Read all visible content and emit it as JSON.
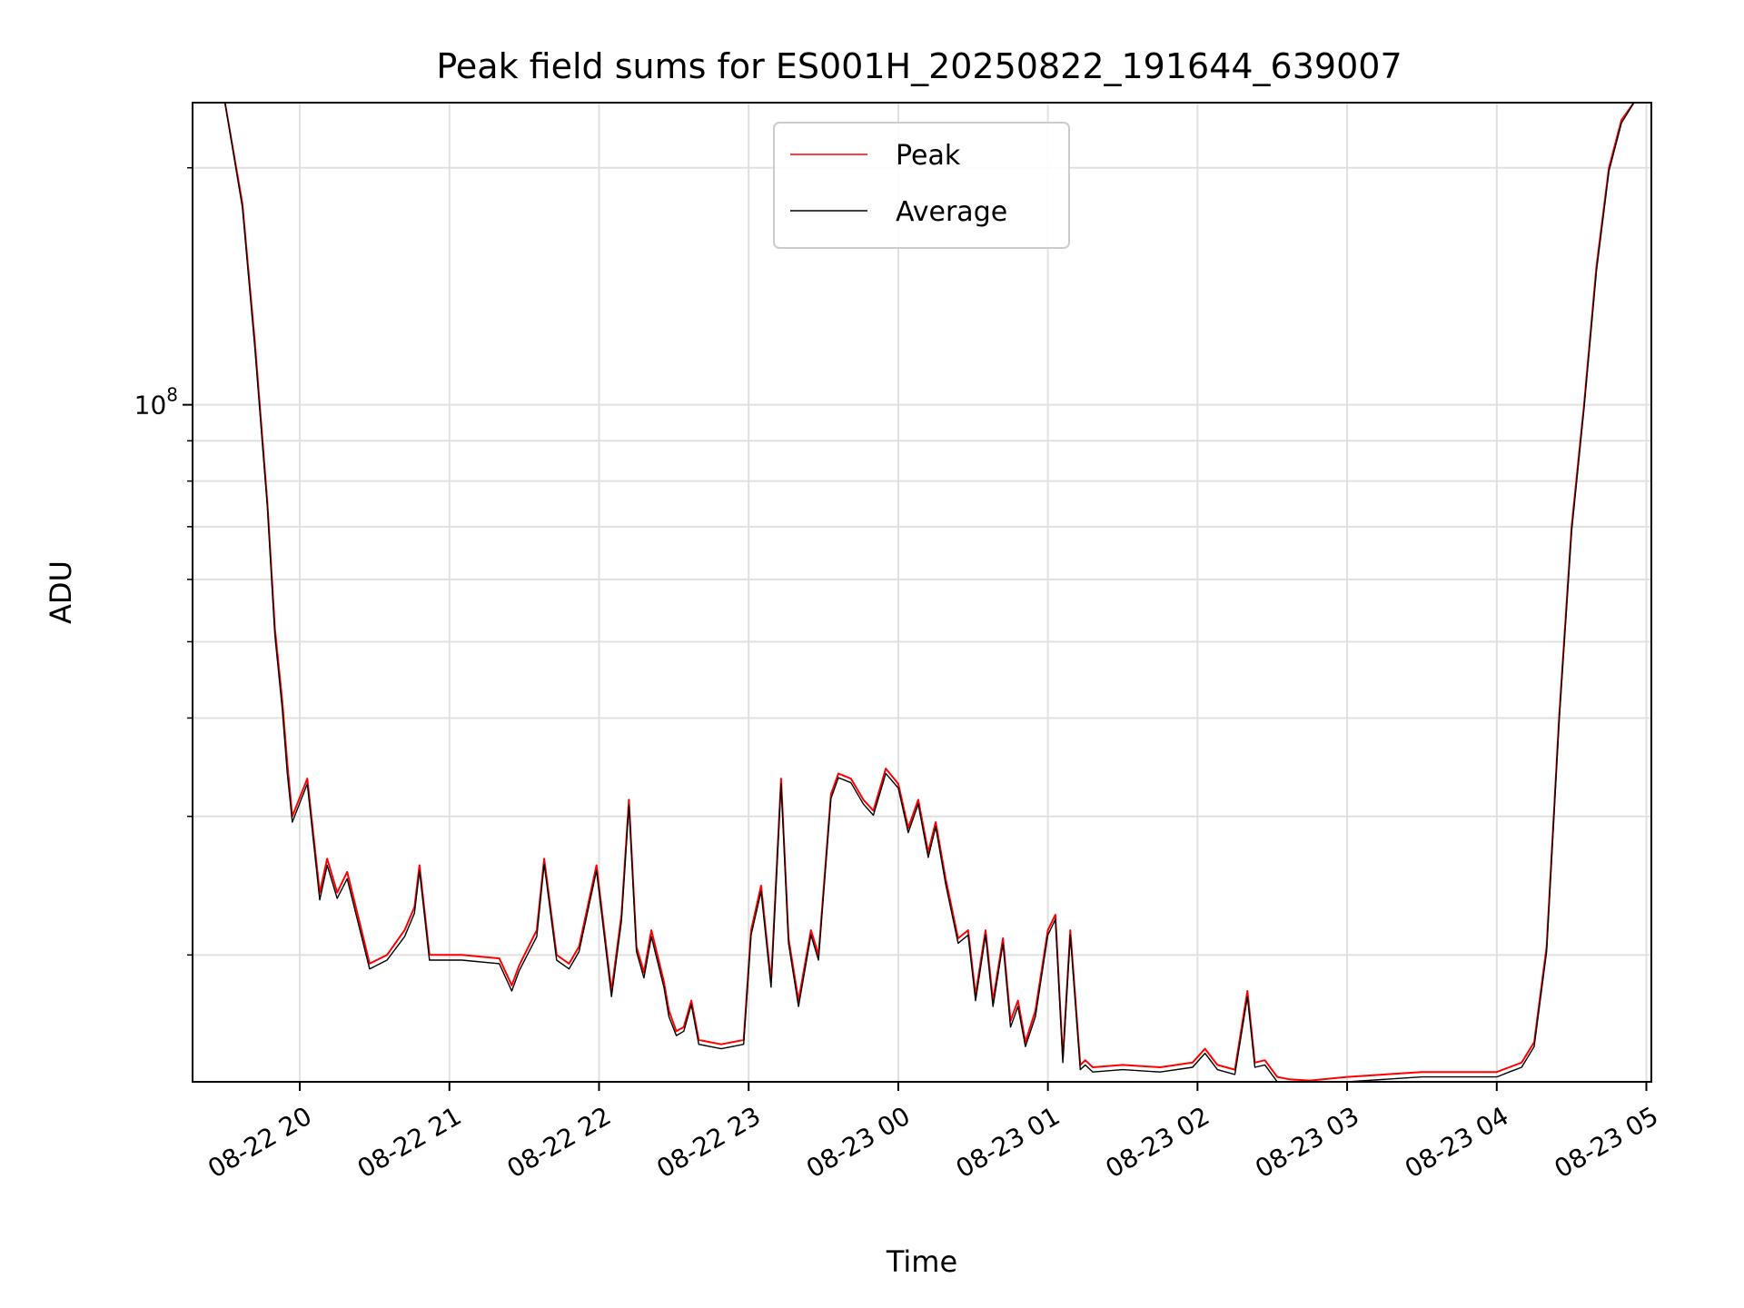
{
  "chart_data": {
    "type": "line",
    "title": "Peak field sums for ES001H_20250822_191644_639007",
    "xlabel": "Time",
    "ylabel": "ADU",
    "x_scale": "time",
    "y_scale": "log",
    "xlim": [
      "2025-08-22T19:17",
      "2025-08-23T05:02"
    ],
    "ylim": [
      13800000,
      242000000
    ],
    "x_ticks": [
      {
        "label": "08-22 20",
        "value": "2025-08-22T20:00"
      },
      {
        "label": "08-22 21",
        "value": "2025-08-22T21:00"
      },
      {
        "label": "08-22 22",
        "value": "2025-08-22T22:00"
      },
      {
        "label": "08-22 23",
        "value": "2025-08-22T23:00"
      },
      {
        "label": "08-23 00",
        "value": "2025-08-23T00:00"
      },
      {
        "label": "08-23 01",
        "value": "2025-08-23T01:00"
      },
      {
        "label": "08-23 02",
        "value": "2025-08-23T02:00"
      },
      {
        "label": "08-23 03",
        "value": "2025-08-23T03:00"
      },
      {
        "label": "08-23 04",
        "value": "2025-08-23T04:00"
      },
      {
        "label": "08-23 05",
        "value": "2025-08-23T05:00"
      }
    ],
    "y_major_ticks": [
      {
        "label_base": "10",
        "label_exp": "8",
        "value": 100000000
      }
    ],
    "y_minor_ticks": [
      20000000,
      30000000,
      40000000,
      50000000,
      60000000,
      70000000,
      80000000,
      90000000,
      200000000
    ],
    "grid": true,
    "legend": {
      "position": "top-center"
    },
    "series": [
      {
        "name": "Peak",
        "color": "#ff0000",
        "x": [
          "2025-08-22T19:17",
          "2025-08-22T19:30",
          "2025-08-22T19:37",
          "2025-08-22T19:42",
          "2025-08-22T19:47",
          "2025-08-22T19:50",
          "2025-08-22T19:53",
          "2025-08-22T19:55",
          "2025-08-22T19:57",
          "2025-08-22T20:03",
          "2025-08-22T20:08",
          "2025-08-22T20:11",
          "2025-08-22T20:15",
          "2025-08-22T20:19",
          "2025-08-22T20:24",
          "2025-08-22T20:28",
          "2025-08-22T20:35",
          "2025-08-22T20:42",
          "2025-08-22T20:46",
          "2025-08-22T20:48",
          "2025-08-22T20:52",
          "2025-08-22T21:05",
          "2025-08-22T21:20",
          "2025-08-22T21:25",
          "2025-08-22T21:28",
          "2025-08-22T21:35",
          "2025-08-22T21:38",
          "2025-08-22T21:43",
          "2025-08-22T21:48",
          "2025-08-22T21:52",
          "2025-08-22T21:59",
          "2025-08-22T22:05",
          "2025-08-22T22:09",
          "2025-08-22T22:12",
          "2025-08-22T22:15",
          "2025-08-22T22:18",
          "2025-08-22T22:21",
          "2025-08-22T22:26",
          "2025-08-22T22:28",
          "2025-08-22T22:31",
          "2025-08-22T22:34",
          "2025-08-22T22:37",
          "2025-08-22T22:40",
          "2025-08-22T22:49",
          "2025-08-22T22:58",
          "2025-08-22T23:01",
          "2025-08-22T23:05",
          "2025-08-22T23:09",
          "2025-08-22T23:13",
          "2025-08-22T23:16",
          "2025-08-22T23:20",
          "2025-08-22T23:25",
          "2025-08-22T23:28",
          "2025-08-22T23:33",
          "2025-08-22T23:36",
          "2025-08-22T23:41",
          "2025-08-22T23:46",
          "2025-08-22T23:50",
          "2025-08-22T23:55",
          "2025-08-23T00:00",
          "2025-08-23T00:04",
          "2025-08-23T00:08",
          "2025-08-23T00:12",
          "2025-08-23T00:15",
          "2025-08-23T00:19",
          "2025-08-23T00:24",
          "2025-08-23T00:28",
          "2025-08-23T00:31",
          "2025-08-23T00:35",
          "2025-08-23T00:38",
          "2025-08-23T00:42",
          "2025-08-23T00:45",
          "2025-08-23T00:48",
          "2025-08-23T00:51",
          "2025-08-23T00:55",
          "2025-08-23T01:00",
          "2025-08-23T01:03",
          "2025-08-23T01:06",
          "2025-08-23T01:09",
          "2025-08-23T01:13",
          "2025-08-23T01:15",
          "2025-08-23T01:18",
          "2025-08-23T01:30",
          "2025-08-23T01:45",
          "2025-08-23T01:58",
          "2025-08-23T02:03",
          "2025-08-23T02:08",
          "2025-08-23T02:15",
          "2025-08-23T02:20",
          "2025-08-23T02:23",
          "2025-08-23T02:27",
          "2025-08-23T02:32",
          "2025-08-23T02:37",
          "2025-08-23T02:45",
          "2025-08-23T03:00",
          "2025-08-23T03:30",
          "2025-08-23T04:00",
          "2025-08-23T04:05",
          "2025-08-23T04:10",
          "2025-08-23T04:15",
          "2025-08-23T04:20",
          "2025-08-23T04:25",
          "2025-08-23T04:30",
          "2025-08-23T04:35",
          "2025-08-23T04:40",
          "2025-08-23T04:45",
          "2025-08-23T04:50",
          "2025-08-23T04:55",
          "2025-08-23T04:58"
        ],
        "y": [
          242000000,
          242000000,
          180000000,
          120000000,
          75000000,
          52000000,
          42000000,
          35000000,
          30000000,
          33500000,
          24000000,
          26500000,
          24000000,
          25500000,
          22000000,
          19500000,
          20000000,
          21500000,
          23000000,
          26000000,
          20000000,
          20000000,
          19800000,
          18300000,
          19400000,
          21500000,
          26500000,
          20000000,
          19500000,
          20500000,
          26000000,
          18000000,
          22500000,
          31500000,
          20500000,
          19000000,
          21500000,
          18500000,
          17000000,
          16000000,
          16200000,
          17500000,
          15600000,
          15400000,
          15600000,
          21500000,
          24500000,
          18500000,
          33500000,
          21000000,
          17500000,
          21500000,
          20000000,
          32000000,
          34000000,
          33500000,
          31500000,
          30500000,
          34500000,
          33000000,
          29000000,
          31500000,
          27000000,
          29500000,
          25000000,
          21000000,
          21500000,
          17800000,
          21500000,
          17500000,
          21000000,
          16500000,
          17500000,
          15500000,
          17000000,
          21500000,
          22500000,
          14800000,
          21500000,
          14500000,
          14700000,
          14400000,
          14500000,
          14400000,
          14600000,
          15200000,
          14500000,
          14300000,
          18000000,
          14600000,
          14700000,
          14000000,
          13900000,
          13850000,
          14000000,
          14200000,
          14200000,
          14400000,
          14600000,
          15500000,
          20500000,
          40000000,
          70000000,
          100000000,
          150000000,
          200000000,
          230000000,
          242000000,
          242000000
        ]
      },
      {
        "name": "Average",
        "color": "#000000",
        "x": [
          "2025-08-22T19:17",
          "2025-08-22T19:30",
          "2025-08-22T19:37",
          "2025-08-22T19:42",
          "2025-08-22T19:47",
          "2025-08-22T19:50",
          "2025-08-22T19:53",
          "2025-08-22T19:55",
          "2025-08-22T19:57",
          "2025-08-22T20:03",
          "2025-08-22T20:08",
          "2025-08-22T20:11",
          "2025-08-22T20:15",
          "2025-08-22T20:19",
          "2025-08-22T20:24",
          "2025-08-22T20:28",
          "2025-08-22T20:35",
          "2025-08-22T20:42",
          "2025-08-22T20:46",
          "2025-08-22T20:48",
          "2025-08-22T20:52",
          "2025-08-22T21:05",
          "2025-08-22T21:20",
          "2025-08-22T21:25",
          "2025-08-22T21:28",
          "2025-08-22T21:35",
          "2025-08-22T21:38",
          "2025-08-22T21:43",
          "2025-08-22T21:48",
          "2025-08-22T21:52",
          "2025-08-22T21:59",
          "2025-08-22T22:05",
          "2025-08-22T22:09",
          "2025-08-22T22:12",
          "2025-08-22T22:15",
          "2025-08-22T22:18",
          "2025-08-22T22:21",
          "2025-08-22T22:26",
          "2025-08-22T22:28",
          "2025-08-22T22:31",
          "2025-08-22T22:34",
          "2025-08-22T22:37",
          "2025-08-22T22:40",
          "2025-08-22T22:49",
          "2025-08-22T22:58",
          "2025-08-22T23:01",
          "2025-08-22T23:05",
          "2025-08-22T23:09",
          "2025-08-22T23:13",
          "2025-08-22T23:16",
          "2025-08-22T23:20",
          "2025-08-22T23:25",
          "2025-08-22T23:28",
          "2025-08-22T23:33",
          "2025-08-22T23:36",
          "2025-08-22T23:41",
          "2025-08-22T23:46",
          "2025-08-22T23:50",
          "2025-08-22T23:55",
          "2025-08-23T00:00",
          "2025-08-23T00:04",
          "2025-08-23T00:08",
          "2025-08-23T00:12",
          "2025-08-23T00:15",
          "2025-08-23T00:19",
          "2025-08-23T00:24",
          "2025-08-23T00:28",
          "2025-08-23T00:31",
          "2025-08-23T00:35",
          "2025-08-23T00:38",
          "2025-08-23T00:42",
          "2025-08-23T00:45",
          "2025-08-23T00:48",
          "2025-08-23T00:51",
          "2025-08-23T00:55",
          "2025-08-23T01:00",
          "2025-08-23T01:03",
          "2025-08-23T01:06",
          "2025-08-23T01:09",
          "2025-08-23T01:13",
          "2025-08-23T01:15",
          "2025-08-23T01:18",
          "2025-08-23T01:30",
          "2025-08-23T01:45",
          "2025-08-23T01:58",
          "2025-08-23T02:03",
          "2025-08-23T02:08",
          "2025-08-23T02:15",
          "2025-08-23T02:20",
          "2025-08-23T02:23",
          "2025-08-23T02:27",
          "2025-08-23T02:32",
          "2025-08-23T02:37",
          "2025-08-23T02:45",
          "2025-08-23T03:00",
          "2025-08-23T03:30",
          "2025-08-23T04:00",
          "2025-08-23T04:05",
          "2025-08-23T04:10",
          "2025-08-23T04:15",
          "2025-08-23T04:20",
          "2025-08-23T04:25",
          "2025-08-23T04:30",
          "2025-08-23T04:35",
          "2025-08-23T04:40",
          "2025-08-23T04:45",
          "2025-08-23T04:50",
          "2025-08-23T04:55",
          "2025-08-23T04:58"
        ],
        "y": [
          242000000,
          242000000,
          178000000,
          118000000,
          74000000,
          51000000,
          41000000,
          34000000,
          29500000,
          33000000,
          23500000,
          26000000,
          23600000,
          25000000,
          21600000,
          19200000,
          19700000,
          21100000,
          22600000,
          25600000,
          19700000,
          19700000,
          19500000,
          18000000,
          19100000,
          21100000,
          26100000,
          19700000,
          19200000,
          20200000,
          25600000,
          17700000,
          22100000,
          31000000,
          20200000,
          18700000,
          21100000,
          18200000,
          16700000,
          15800000,
          16000000,
          17300000,
          15400000,
          15200000,
          15400000,
          21200000,
          24100000,
          18200000,
          33000000,
          20700000,
          17200000,
          21200000,
          19700000,
          31600000,
          33600000,
          33100000,
          31100000,
          30100000,
          34000000,
          32600000,
          28600000,
          31100000,
          26600000,
          29100000,
          24600000,
          20700000,
          21200000,
          17500000,
          21200000,
          17200000,
          20700000,
          16200000,
          17200000,
          15300000,
          16700000,
          21200000,
          22200000,
          14600000,
          21200000,
          14300000,
          14500000,
          14200000,
          14300000,
          14200000,
          14400000,
          15000000,
          14300000,
          14100000,
          17700000,
          14400000,
          14500000,
          13800000,
          13700000,
          13650000,
          13800000,
          14000000,
          14000000,
          14200000,
          14400000,
          15300000,
          20200000,
          39500000,
          69000000,
          99000000,
          148000000,
          198000000,
          228000000,
          242000000,
          242000000
        ]
      }
    ]
  }
}
